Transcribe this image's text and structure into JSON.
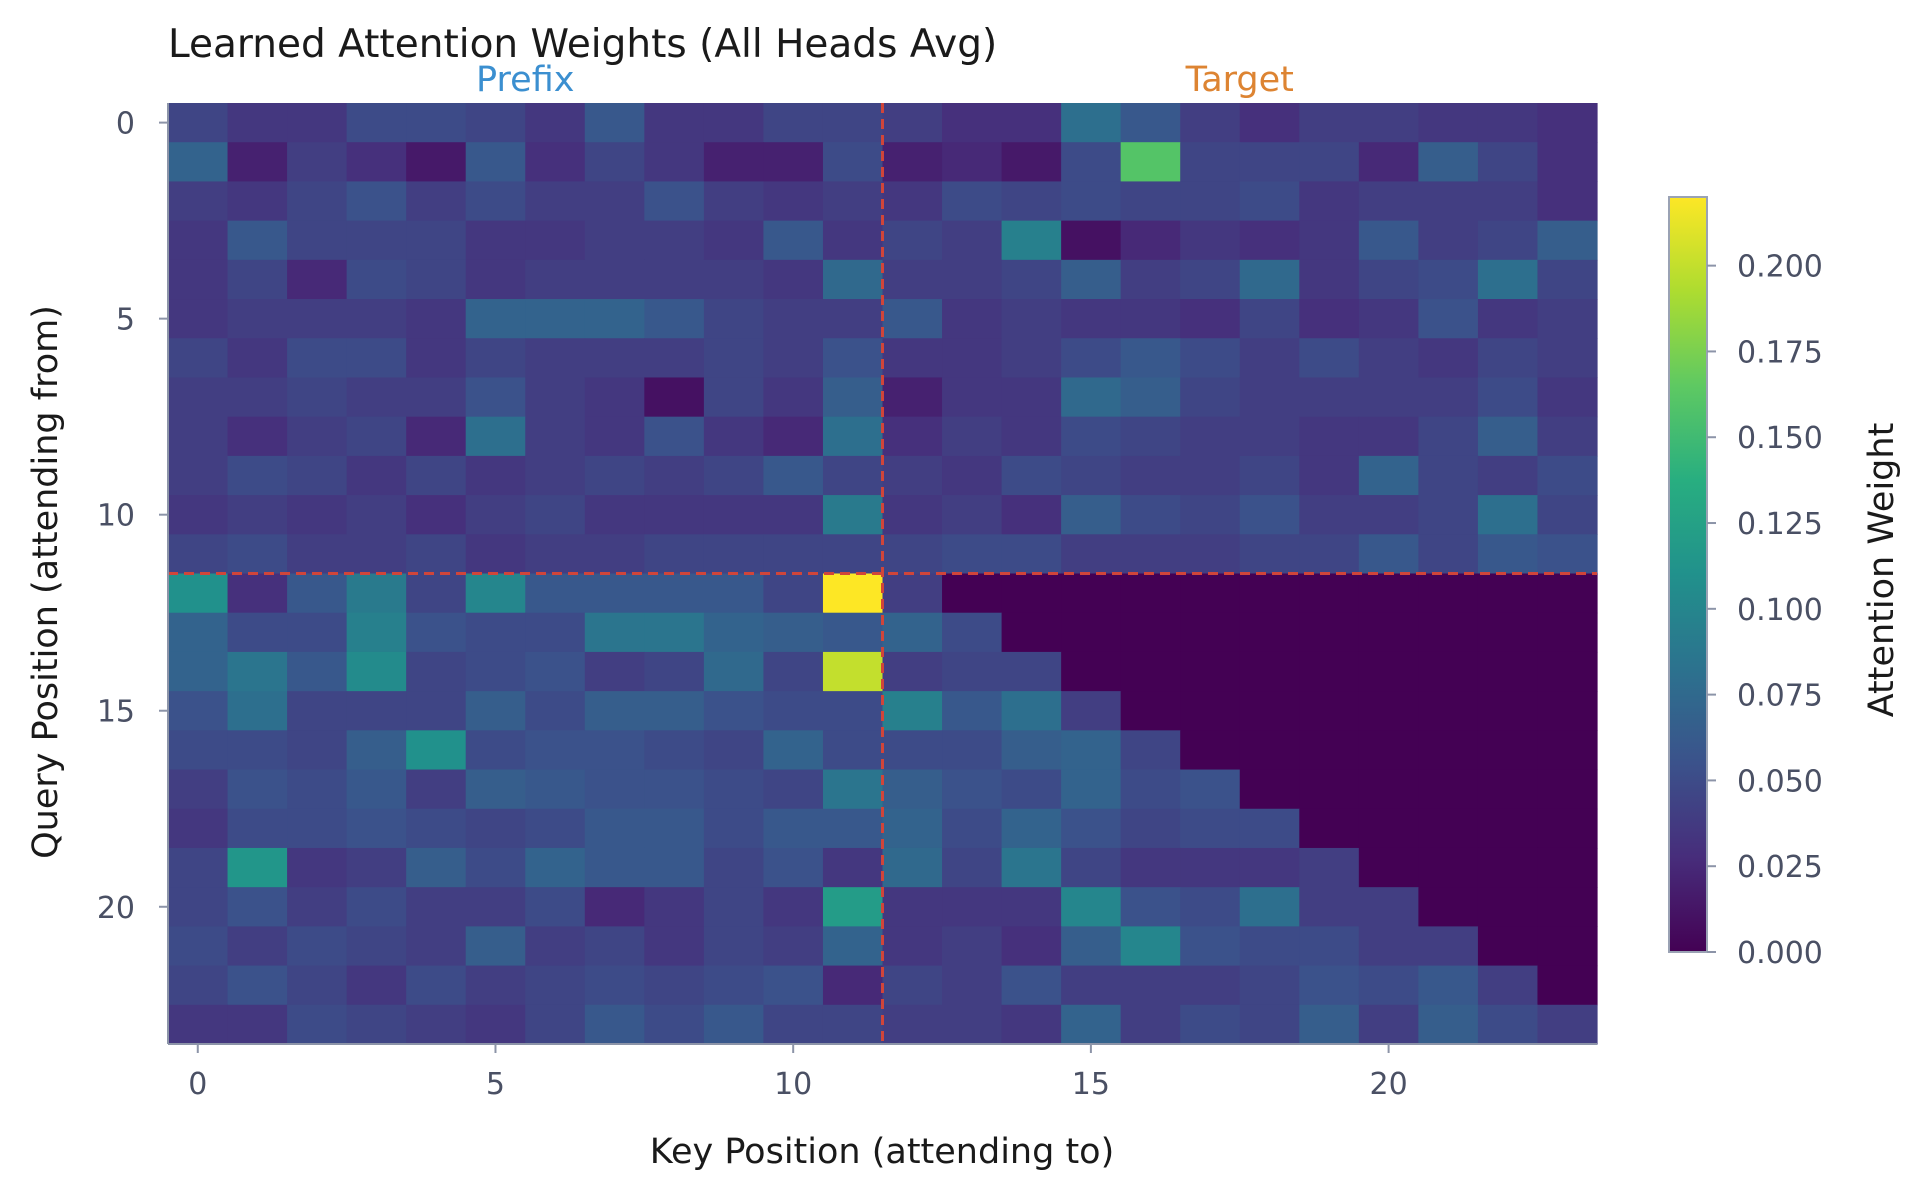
{
  "chart_data": {
    "type": "heatmap",
    "title": "Learned Attention Weights (All Heads Avg)",
    "xlabel": "Key Position (attending to)",
    "ylabel": "Query Position (attending from)",
    "x_ticks": [
      0,
      5,
      10,
      15,
      20
    ],
    "y_ticks": [
      0,
      5,
      10,
      15,
      20
    ],
    "n_keys": 24,
    "n_queries": 24,
    "regions": [
      {
        "label": "Prefix",
        "color": "#3b8fd0"
      },
      {
        "label": "Target",
        "color": "#dd8432"
      }
    ],
    "divider_after_index": 11,
    "divider_color": "#d0453a",
    "colorbar": {
      "label": "Attention Weight",
      "range": [
        0,
        0.22
      ],
      "ticks": [
        "0.000",
        "0.025",
        "0.050",
        "0.075",
        "0.100",
        "0.125",
        "0.150",
        "0.175",
        "0.200"
      ],
      "colormap": "viridis"
    },
    "values": [
      [
        0.045,
        0.035,
        0.035,
        0.05,
        0.05,
        0.045,
        0.035,
        0.06,
        0.035,
        0.035,
        0.045,
        0.045,
        0.04,
        0.03,
        0.03,
        0.08,
        0.06,
        0.04,
        0.03,
        0.04,
        0.04,
        0.035,
        0.035,
        0.03
      ],
      [
        0.07,
        0.02,
        0.04,
        0.03,
        0.015,
        0.06,
        0.03,
        0.045,
        0.035,
        0.02,
        0.02,
        0.05,
        0.02,
        0.025,
        0.015,
        0.05,
        0.16,
        0.045,
        0.045,
        0.045,
        0.025,
        0.065,
        0.045,
        0.03
      ],
      [
        0.04,
        0.035,
        0.045,
        0.055,
        0.04,
        0.05,
        0.04,
        0.04,
        0.055,
        0.04,
        0.035,
        0.04,
        0.035,
        0.05,
        0.045,
        0.05,
        0.045,
        0.045,
        0.05,
        0.035,
        0.04,
        0.04,
        0.04,
        0.03
      ],
      [
        0.035,
        0.06,
        0.045,
        0.045,
        0.045,
        0.035,
        0.035,
        0.04,
        0.04,
        0.035,
        0.06,
        0.035,
        0.045,
        0.04,
        0.095,
        0.01,
        0.025,
        0.035,
        0.03,
        0.035,
        0.06,
        0.04,
        0.045,
        0.065
      ],
      [
        0.035,
        0.045,
        0.025,
        0.05,
        0.045,
        0.035,
        0.04,
        0.04,
        0.04,
        0.04,
        0.035,
        0.075,
        0.04,
        0.04,
        0.045,
        0.065,
        0.04,
        0.045,
        0.075,
        0.035,
        0.045,
        0.05,
        0.08,
        0.045
      ],
      [
        0.035,
        0.04,
        0.04,
        0.04,
        0.035,
        0.07,
        0.07,
        0.07,
        0.06,
        0.045,
        0.04,
        0.04,
        0.06,
        0.035,
        0.04,
        0.035,
        0.035,
        0.03,
        0.045,
        0.03,
        0.035,
        0.055,
        0.035,
        0.04
      ],
      [
        0.045,
        0.035,
        0.05,
        0.05,
        0.035,
        0.045,
        0.04,
        0.04,
        0.04,
        0.045,
        0.04,
        0.055,
        0.035,
        0.035,
        0.04,
        0.05,
        0.06,
        0.05,
        0.04,
        0.05,
        0.04,
        0.035,
        0.045,
        0.04
      ],
      [
        0.04,
        0.04,
        0.045,
        0.04,
        0.04,
        0.055,
        0.04,
        0.035,
        0.01,
        0.045,
        0.035,
        0.065,
        0.02,
        0.035,
        0.035,
        0.075,
        0.065,
        0.045,
        0.04,
        0.04,
        0.04,
        0.04,
        0.05,
        0.035
      ],
      [
        0.04,
        0.03,
        0.04,
        0.045,
        0.025,
        0.08,
        0.04,
        0.035,
        0.055,
        0.035,
        0.025,
        0.08,
        0.03,
        0.04,
        0.035,
        0.05,
        0.045,
        0.04,
        0.04,
        0.035,
        0.035,
        0.045,
        0.065,
        0.04
      ],
      [
        0.04,
        0.05,
        0.045,
        0.035,
        0.045,
        0.035,
        0.04,
        0.045,
        0.04,
        0.045,
        0.06,
        0.045,
        0.04,
        0.035,
        0.05,
        0.045,
        0.04,
        0.04,
        0.045,
        0.035,
        0.07,
        0.045,
        0.04,
        0.05
      ],
      [
        0.035,
        0.04,
        0.035,
        0.04,
        0.03,
        0.04,
        0.045,
        0.035,
        0.035,
        0.035,
        0.035,
        0.09,
        0.035,
        0.04,
        0.03,
        0.065,
        0.05,
        0.045,
        0.055,
        0.04,
        0.04,
        0.045,
        0.08,
        0.045
      ],
      [
        0.045,
        0.05,
        0.04,
        0.04,
        0.045,
        0.035,
        0.04,
        0.04,
        0.045,
        0.045,
        0.045,
        0.045,
        0.045,
        0.05,
        0.05,
        0.04,
        0.04,
        0.04,
        0.045,
        0.045,
        0.06,
        0.045,
        0.06,
        0.055
      ],
      [
        0.11,
        0.03,
        0.06,
        0.09,
        0.045,
        0.1,
        0.06,
        0.06,
        0.06,
        0.06,
        0.045,
        0.22,
        0.04,
        0,
        0,
        0,
        0,
        0,
        0,
        0,
        0,
        0,
        0,
        0
      ],
      [
        0.07,
        0.05,
        0.05,
        0.095,
        0.055,
        0.05,
        0.05,
        0.085,
        0.085,
        0.07,
        0.065,
        0.06,
        0.07,
        0.05,
        0,
        0,
        0,
        0,
        0,
        0,
        0,
        0,
        0,
        0
      ],
      [
        0.07,
        0.085,
        0.06,
        0.105,
        0.045,
        0.05,
        0.055,
        0.04,
        0.045,
        0.075,
        0.045,
        0.2,
        0.04,
        0.045,
        0.045,
        0,
        0,
        0,
        0,
        0,
        0,
        0,
        0,
        0
      ],
      [
        0.055,
        0.08,
        0.045,
        0.045,
        0.045,
        0.065,
        0.05,
        0.065,
        0.065,
        0.055,
        0.05,
        0.05,
        0.095,
        0.06,
        0.08,
        0.04,
        0,
        0,
        0,
        0,
        0,
        0,
        0,
        0
      ],
      [
        0.05,
        0.05,
        0.045,
        0.065,
        0.11,
        0.05,
        0.055,
        0.055,
        0.05,
        0.045,
        0.07,
        0.05,
        0.05,
        0.05,
        0.065,
        0.07,
        0.045,
        0,
        0,
        0,
        0,
        0,
        0,
        0
      ],
      [
        0.04,
        0.055,
        0.05,
        0.06,
        0.04,
        0.065,
        0.06,
        0.055,
        0.055,
        0.05,
        0.045,
        0.085,
        0.065,
        0.055,
        0.05,
        0.07,
        0.05,
        0.055,
        0,
        0,
        0,
        0,
        0,
        0
      ],
      [
        0.035,
        0.05,
        0.05,
        0.055,
        0.05,
        0.045,
        0.05,
        0.06,
        0.06,
        0.05,
        0.06,
        0.06,
        0.07,
        0.05,
        0.07,
        0.055,
        0.045,
        0.05,
        0.05,
        0,
        0,
        0,
        0,
        0
      ],
      [
        0.045,
        0.115,
        0.035,
        0.04,
        0.065,
        0.05,
        0.07,
        0.06,
        0.06,
        0.045,
        0.055,
        0.035,
        0.075,
        0.045,
        0.085,
        0.045,
        0.035,
        0.035,
        0.035,
        0.04,
        0,
        0,
        0,
        0
      ],
      [
        0.045,
        0.055,
        0.04,
        0.05,
        0.04,
        0.04,
        0.05,
        0.025,
        0.035,
        0.045,
        0.035,
        0.12,
        0.035,
        0.035,
        0.035,
        0.1,
        0.055,
        0.05,
        0.08,
        0.04,
        0.04,
        0,
        0,
        0
      ],
      [
        0.05,
        0.04,
        0.05,
        0.045,
        0.04,
        0.065,
        0.04,
        0.045,
        0.035,
        0.045,
        0.04,
        0.07,
        0.035,
        0.04,
        0.03,
        0.065,
        0.1,
        0.055,
        0.05,
        0.05,
        0.04,
        0.04,
        0,
        0
      ],
      [
        0.045,
        0.055,
        0.045,
        0.035,
        0.05,
        0.04,
        0.045,
        0.05,
        0.045,
        0.05,
        0.055,
        0.025,
        0.045,
        0.04,
        0.055,
        0.04,
        0.04,
        0.04,
        0.045,
        0.055,
        0.05,
        0.06,
        0.04,
        0
      ],
      [
        0.035,
        0.035,
        0.05,
        0.045,
        0.04,
        0.035,
        0.045,
        0.06,
        0.05,
        0.06,
        0.045,
        0.045,
        0.04,
        0.04,
        0.035,
        0.07,
        0.04,
        0.05,
        0.045,
        0.065,
        0.04,
        0.065,
        0.05,
        0.04
      ]
    ]
  }
}
